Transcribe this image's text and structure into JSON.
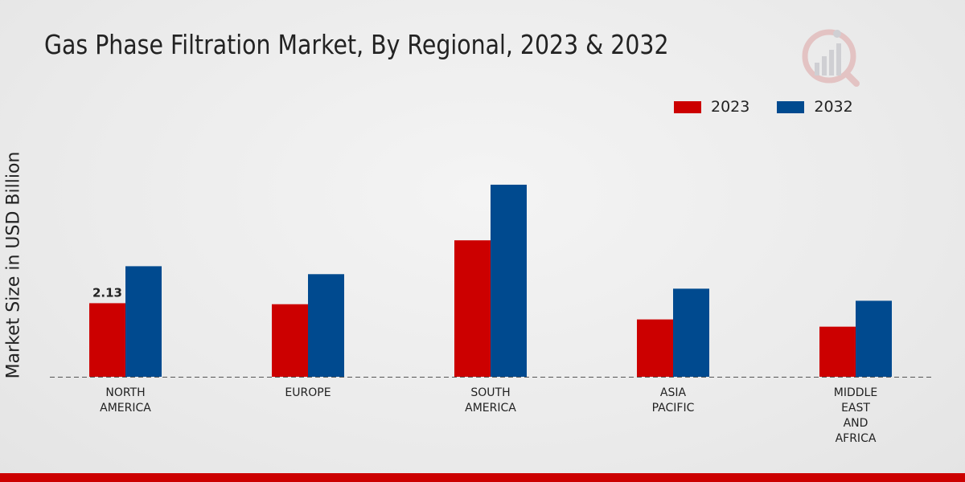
{
  "chart_data": {
    "type": "bar",
    "title": "Gas Phase Filtration Market, By Regional, 2023 & 2032",
    "xlabel": "",
    "ylabel": "Market Size in USD Billion",
    "categories": [
      [
        "NORTH",
        "AMERICA"
      ],
      [
        "EUROPE"
      ],
      [
        "SOUTH",
        "AMERICA"
      ],
      [
        "ASIA",
        "PACIFIC"
      ],
      [
        "MIDDLE",
        "EAST",
        "AND",
        "AFRICA"
      ]
    ],
    "series": [
      {
        "name": "2023",
        "color": "#cc0000",
        "values": [
          2.13,
          2.1,
          3.95,
          1.66,
          1.45
        ]
      },
      {
        "name": "2032",
        "color": "#004a8f",
        "values": [
          3.2,
          2.97,
          5.56,
          2.55,
          2.2
        ]
      }
    ],
    "data_labels": [
      {
        "series": 0,
        "index": 0,
        "text": "2.13"
      }
    ],
    "ylim": [
      0,
      8
    ],
    "grid": false,
    "legend": "top-right"
  }
}
